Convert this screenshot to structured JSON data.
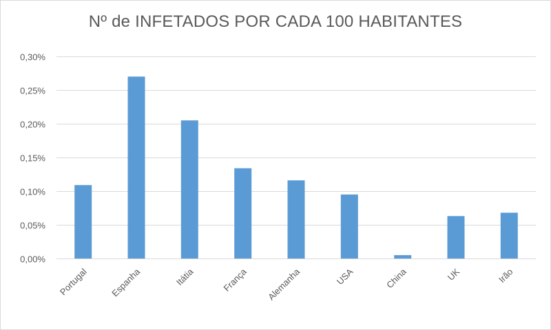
{
  "chart_data": {
    "type": "bar",
    "title": "Nº de INFETADOS POR CADA 100 HABITANTES",
    "xlabel": "",
    "ylabel": "",
    "categories": [
      "Portugal",
      "Espanha",
      "Itátia",
      "França",
      "Alemanha",
      "USA",
      "China",
      "UK",
      "Irão"
    ],
    "values": [
      0.109,
      0.27,
      0.205,
      0.134,
      0.116,
      0.095,
      0.005,
      0.063,
      0.068
    ],
    "ylim": [
      0,
      0.3
    ],
    "yticks": [
      0,
      0.05,
      0.1,
      0.15,
      0.2,
      0.25,
      0.3
    ],
    "ytick_labels": [
      "0,00%",
      "0,05%",
      "0,10%",
      "0,15%",
      "0,20%",
      "0,25%",
      "0,30%"
    ],
    "grid": true,
    "legend": "none",
    "colors": {
      "bar": "#5b9bd5",
      "grid": "#d9d9d9",
      "text": "#595959"
    }
  }
}
